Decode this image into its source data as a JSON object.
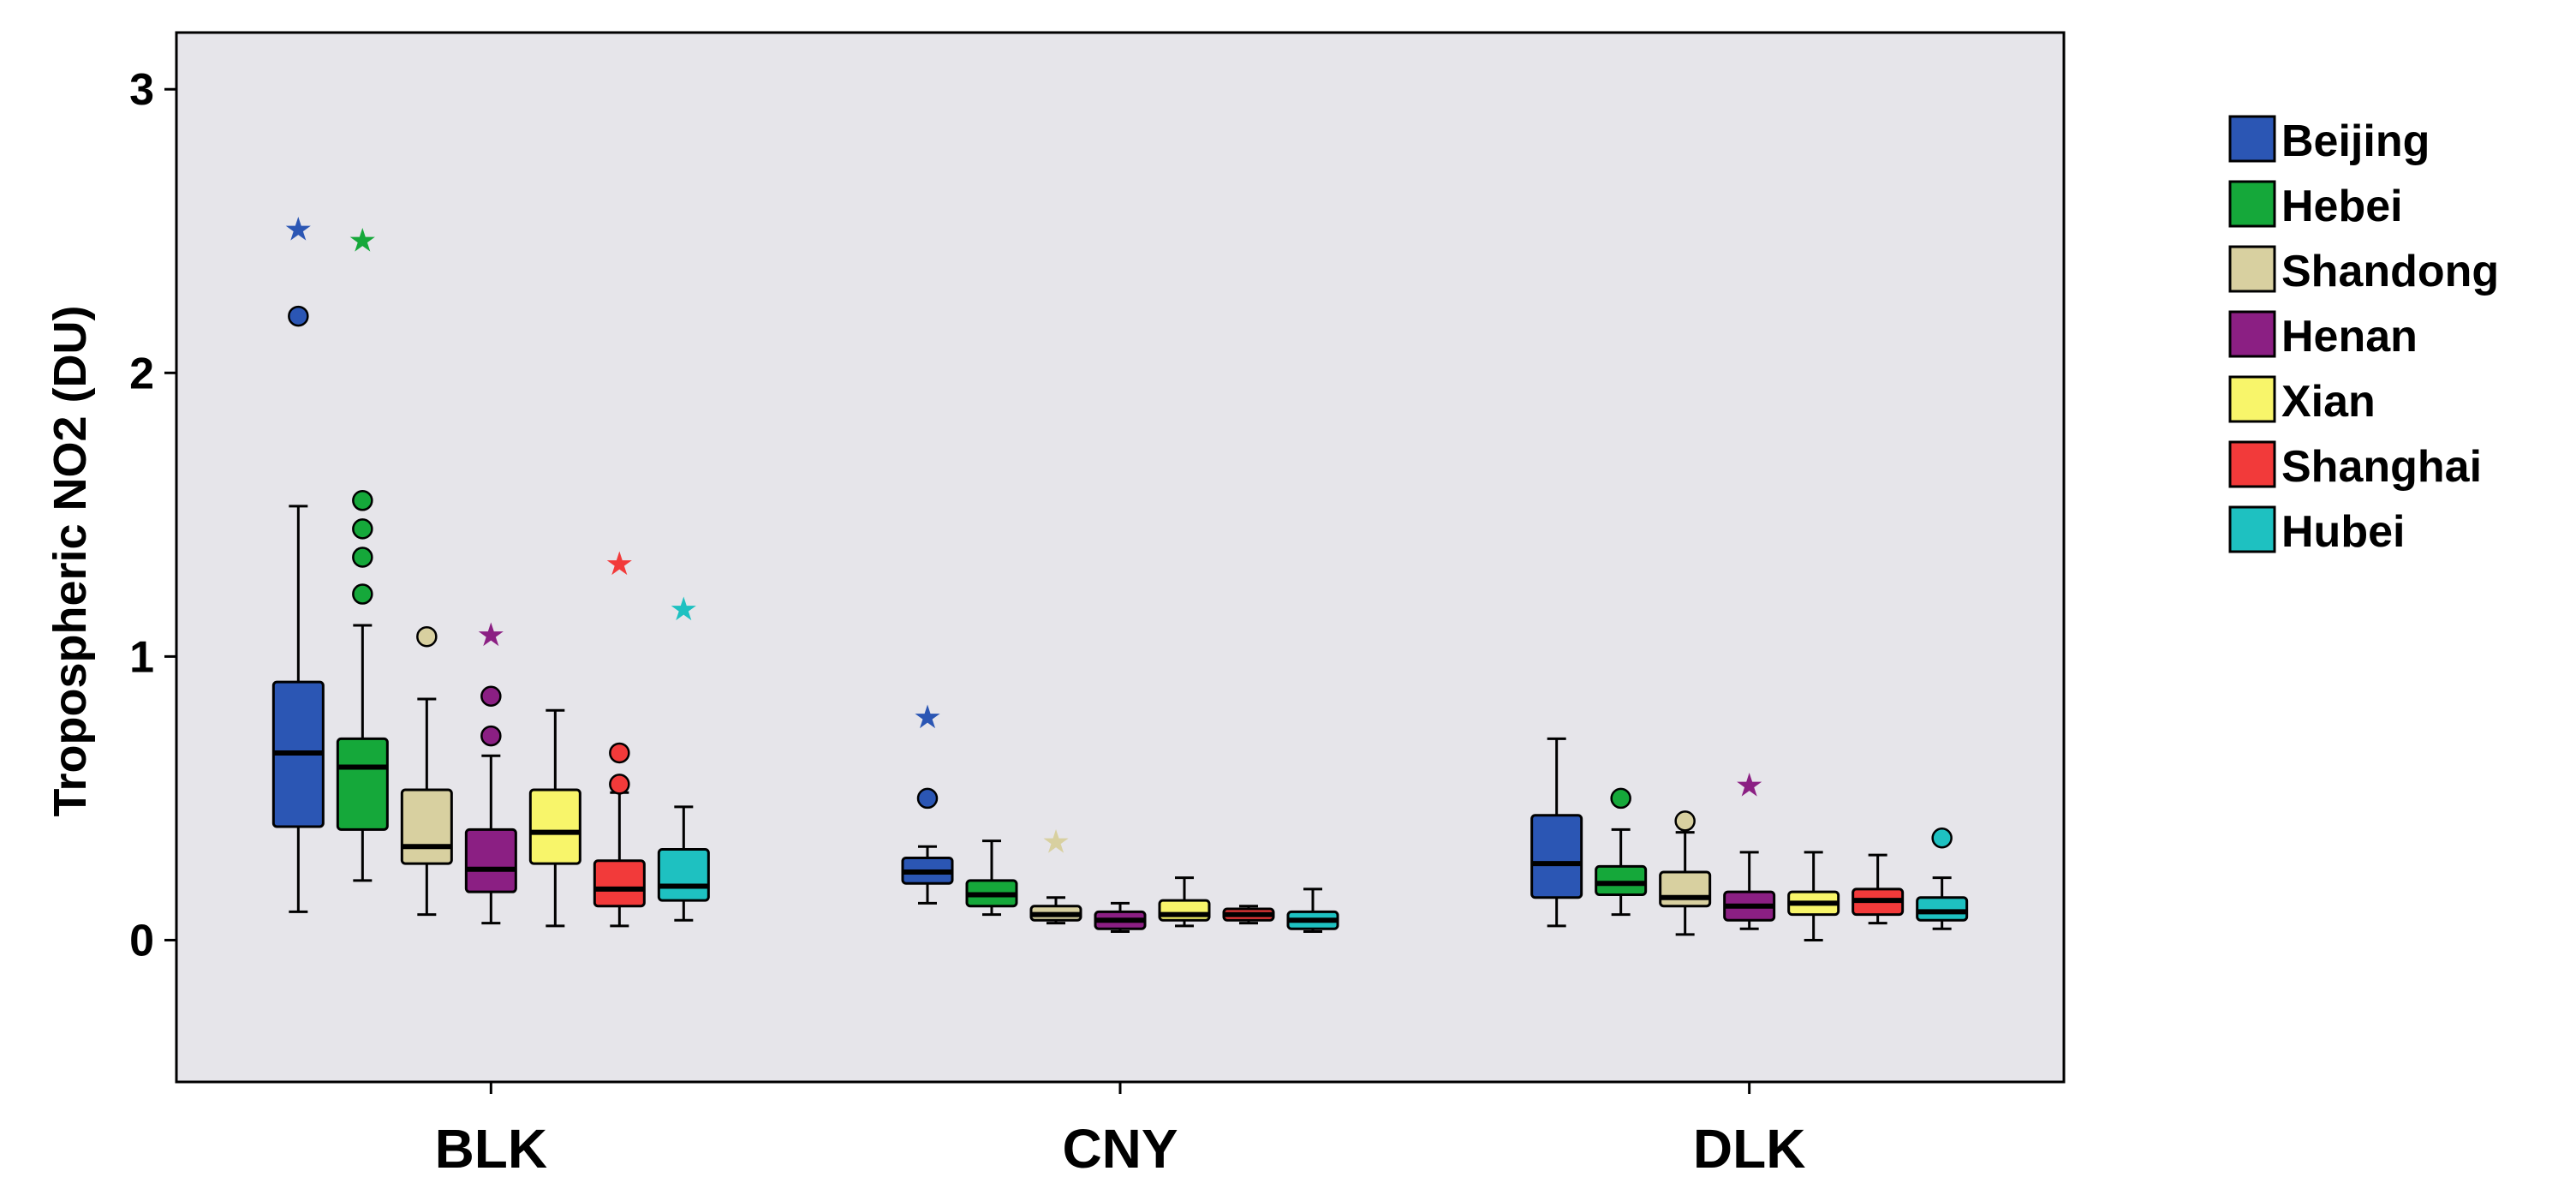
{
  "chart_data": {
    "type": "boxplot",
    "title": "",
    "xlabel": "",
    "ylabel": "Tropospheric NO2 (DU)",
    "ylim": [
      -0.5,
      3.2
    ],
    "yticks": [
      "0",
      "1",
      "2",
      "3"
    ],
    "ytick_values": [
      0,
      1,
      2,
      3
    ],
    "grid": false,
    "legend_position": "right",
    "plot_background": "#e6e5ea",
    "categories": [
      "BLK",
      "CNY",
      "DLK"
    ],
    "series": [
      {
        "name": "Beijing",
        "color": "#2b56b4",
        "boxes": [
          {
            "min": 0.1,
            "q1": 0.4,
            "median": 0.66,
            "q3": 0.91,
            "max": 1.53,
            "outliers": [
              2.2
            ],
            "extremes": [
              2.51
            ]
          },
          {
            "min": 0.13,
            "q1": 0.2,
            "median": 0.24,
            "q3": 0.29,
            "max": 0.33,
            "outliers": [
              0.5
            ],
            "extremes": [
              0.79
            ]
          },
          {
            "min": 0.05,
            "q1": 0.15,
            "median": 0.27,
            "q3": 0.44,
            "max": 0.71,
            "outliers": [],
            "extremes": []
          }
        ]
      },
      {
        "name": "Hebei",
        "color": "#15a83a",
        "boxes": [
          {
            "min": 0.21,
            "q1": 0.39,
            "median": 0.61,
            "q3": 0.71,
            "max": 1.11,
            "outliers": [
              1.22,
              1.35,
              1.45,
              1.55
            ],
            "extremes": [
              2.47
            ]
          },
          {
            "min": 0.09,
            "q1": 0.12,
            "median": 0.16,
            "q3": 0.21,
            "max": 0.35,
            "outliers": [],
            "extremes": []
          },
          {
            "min": 0.09,
            "q1": 0.16,
            "median": 0.2,
            "q3": 0.26,
            "max": 0.39,
            "outliers": [
              0.5
            ],
            "extremes": []
          }
        ]
      },
      {
        "name": "Shandong",
        "color": "#d8d0a0",
        "boxes": [
          {
            "min": 0.09,
            "q1": 0.27,
            "median": 0.33,
            "q3": 0.53,
            "max": 0.85,
            "outliers": [
              1.07
            ],
            "extremes": []
          },
          {
            "min": 0.06,
            "q1": 0.07,
            "median": 0.09,
            "q3": 0.12,
            "max": 0.15,
            "outliers": [],
            "extremes": [
              0.35
            ]
          },
          {
            "min": 0.02,
            "q1": 0.12,
            "median": 0.15,
            "q3": 0.24,
            "max": 0.38,
            "outliers": [
              0.42
            ],
            "extremes": []
          }
        ]
      },
      {
        "name": "Henan",
        "color": "#8b1f83",
        "boxes": [
          {
            "min": 0.06,
            "q1": 0.17,
            "median": 0.25,
            "q3": 0.39,
            "max": 0.65,
            "outliers": [
              0.72,
              0.86
            ],
            "extremes": [
              1.08
            ]
          },
          {
            "min": 0.03,
            "q1": 0.04,
            "median": 0.07,
            "q3": 0.1,
            "max": 0.13,
            "outliers": [],
            "extremes": []
          },
          {
            "min": 0.04,
            "q1": 0.07,
            "median": 0.12,
            "q3": 0.17,
            "max": 0.31,
            "outliers": [],
            "extremes": [
              0.55
            ]
          }
        ]
      },
      {
        "name": "Xian",
        "color": "#f8f56a",
        "boxes": [
          {
            "min": 0.05,
            "q1": 0.27,
            "median": 0.38,
            "q3": 0.53,
            "max": 0.81,
            "outliers": [],
            "extremes": []
          },
          {
            "min": 0.05,
            "q1": 0.07,
            "median": 0.09,
            "q3": 0.14,
            "max": 0.22,
            "outliers": [],
            "extremes": []
          },
          {
            "min": 0.0,
            "q1": 0.09,
            "median": 0.13,
            "q3": 0.17,
            "max": 0.31,
            "outliers": [],
            "extremes": []
          }
        ]
      },
      {
        "name": "Shanghai",
        "color": "#f23a3a",
        "boxes": [
          {
            "min": 0.05,
            "q1": 0.12,
            "median": 0.18,
            "q3": 0.28,
            "max": 0.52,
            "outliers": [
              0.55,
              0.66
            ],
            "extremes": [
              1.33
            ]
          },
          {
            "min": 0.06,
            "q1": 0.07,
            "median": 0.09,
            "q3": 0.11,
            "max": 0.12,
            "outliers": [],
            "extremes": []
          },
          {
            "min": 0.06,
            "q1": 0.09,
            "median": 0.14,
            "q3": 0.18,
            "max": 0.3,
            "outliers": [],
            "extremes": []
          }
        ]
      },
      {
        "name": "Hubei",
        "color": "#1ec1c1",
        "boxes": [
          {
            "min": 0.07,
            "q1": 0.14,
            "median": 0.19,
            "q3": 0.32,
            "max": 0.47,
            "outliers": [],
            "extremes": [
              1.17
            ]
          },
          {
            "min": 0.03,
            "q1": 0.04,
            "median": 0.07,
            "q3": 0.1,
            "max": 0.18,
            "outliers": [],
            "extremes": []
          },
          {
            "min": 0.04,
            "q1": 0.07,
            "median": 0.1,
            "q3": 0.15,
            "max": 0.22,
            "outliers": [
              0.36
            ],
            "extremes": []
          }
        ]
      }
    ]
  }
}
